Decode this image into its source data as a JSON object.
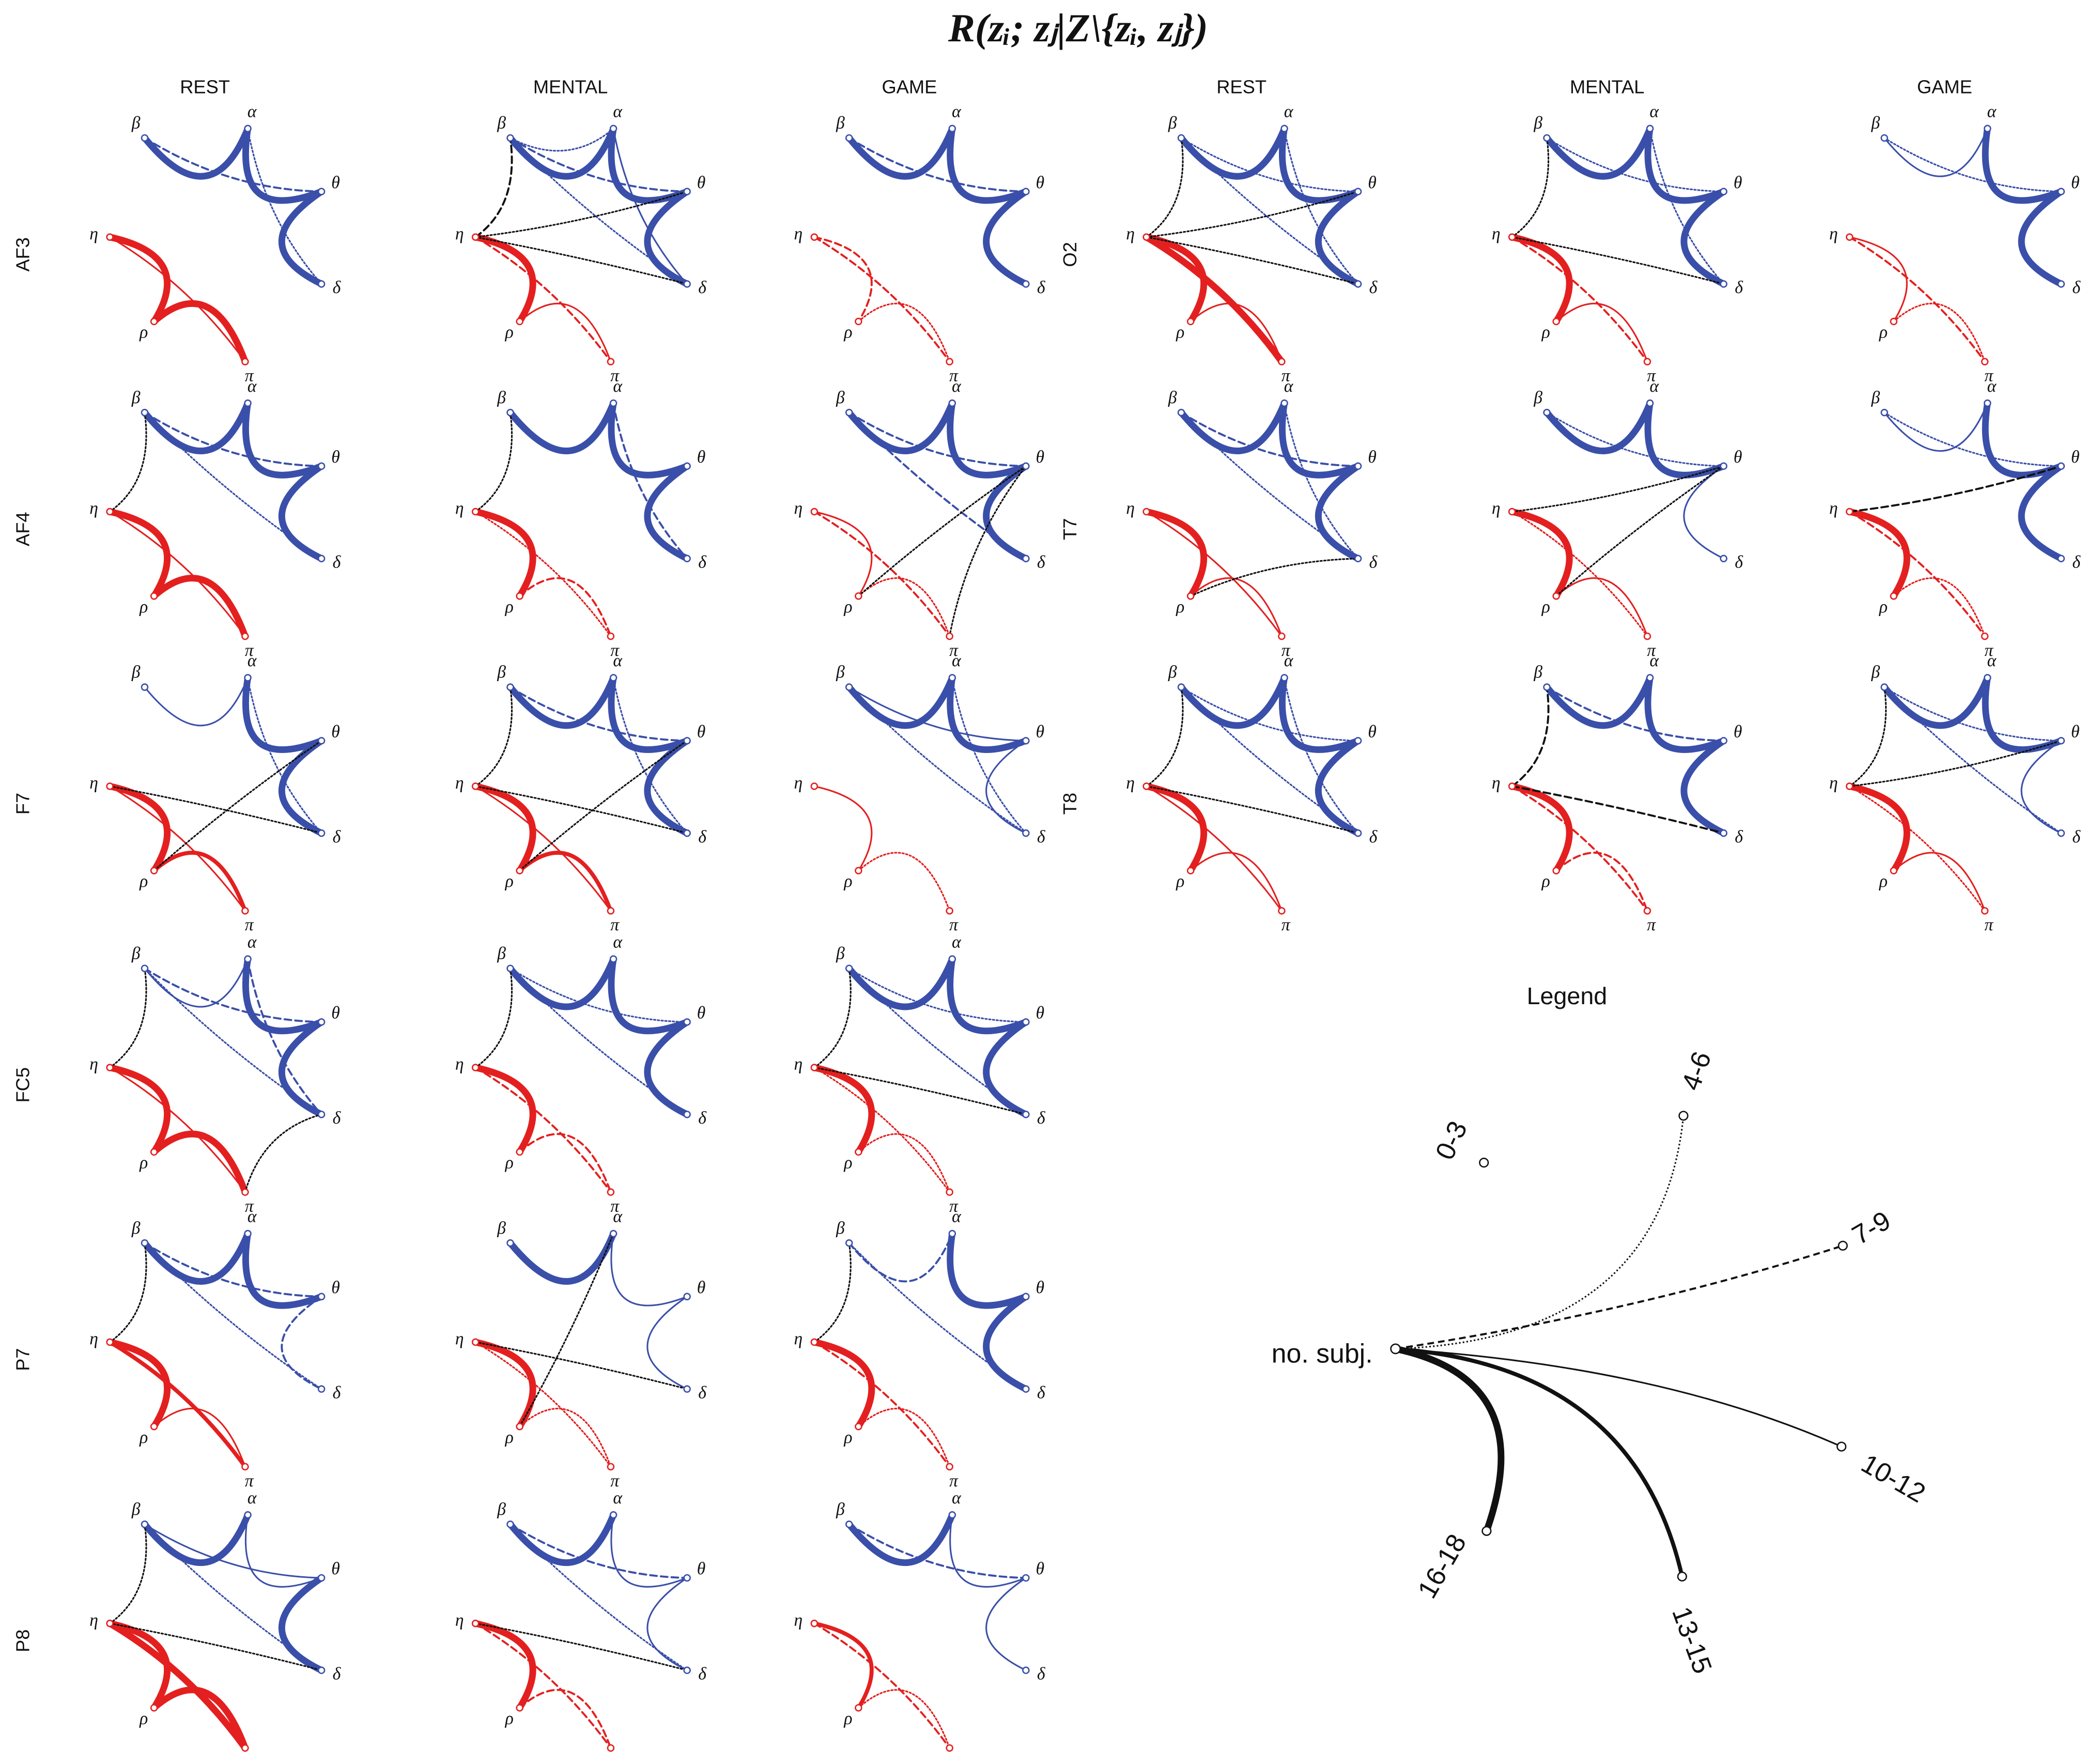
{
  "title": "R(zᵢ; zⱼ|Z\\{zᵢ, zⱼ})",
  "column_headers": [
    "REST",
    "MENTAL",
    "GAME",
    "REST",
    "MENTAL",
    "GAME"
  ],
  "row_labels_left": [
    "AF3",
    "AF4",
    "F7",
    "FC5",
    "P7",
    "P8"
  ],
  "row_labels_right": [
    "O2",
    "T7",
    "T8"
  ],
  "nodes": [
    "β",
    "α",
    "θ",
    "δ",
    "π",
    "ρ",
    "η"
  ],
  "legend": {
    "title": "Legend",
    "hub": "no. subj.",
    "levels": [
      "0-3",
      "4-6",
      "7-9",
      "10-12",
      "13-15",
      "16-18"
    ]
  }
}
